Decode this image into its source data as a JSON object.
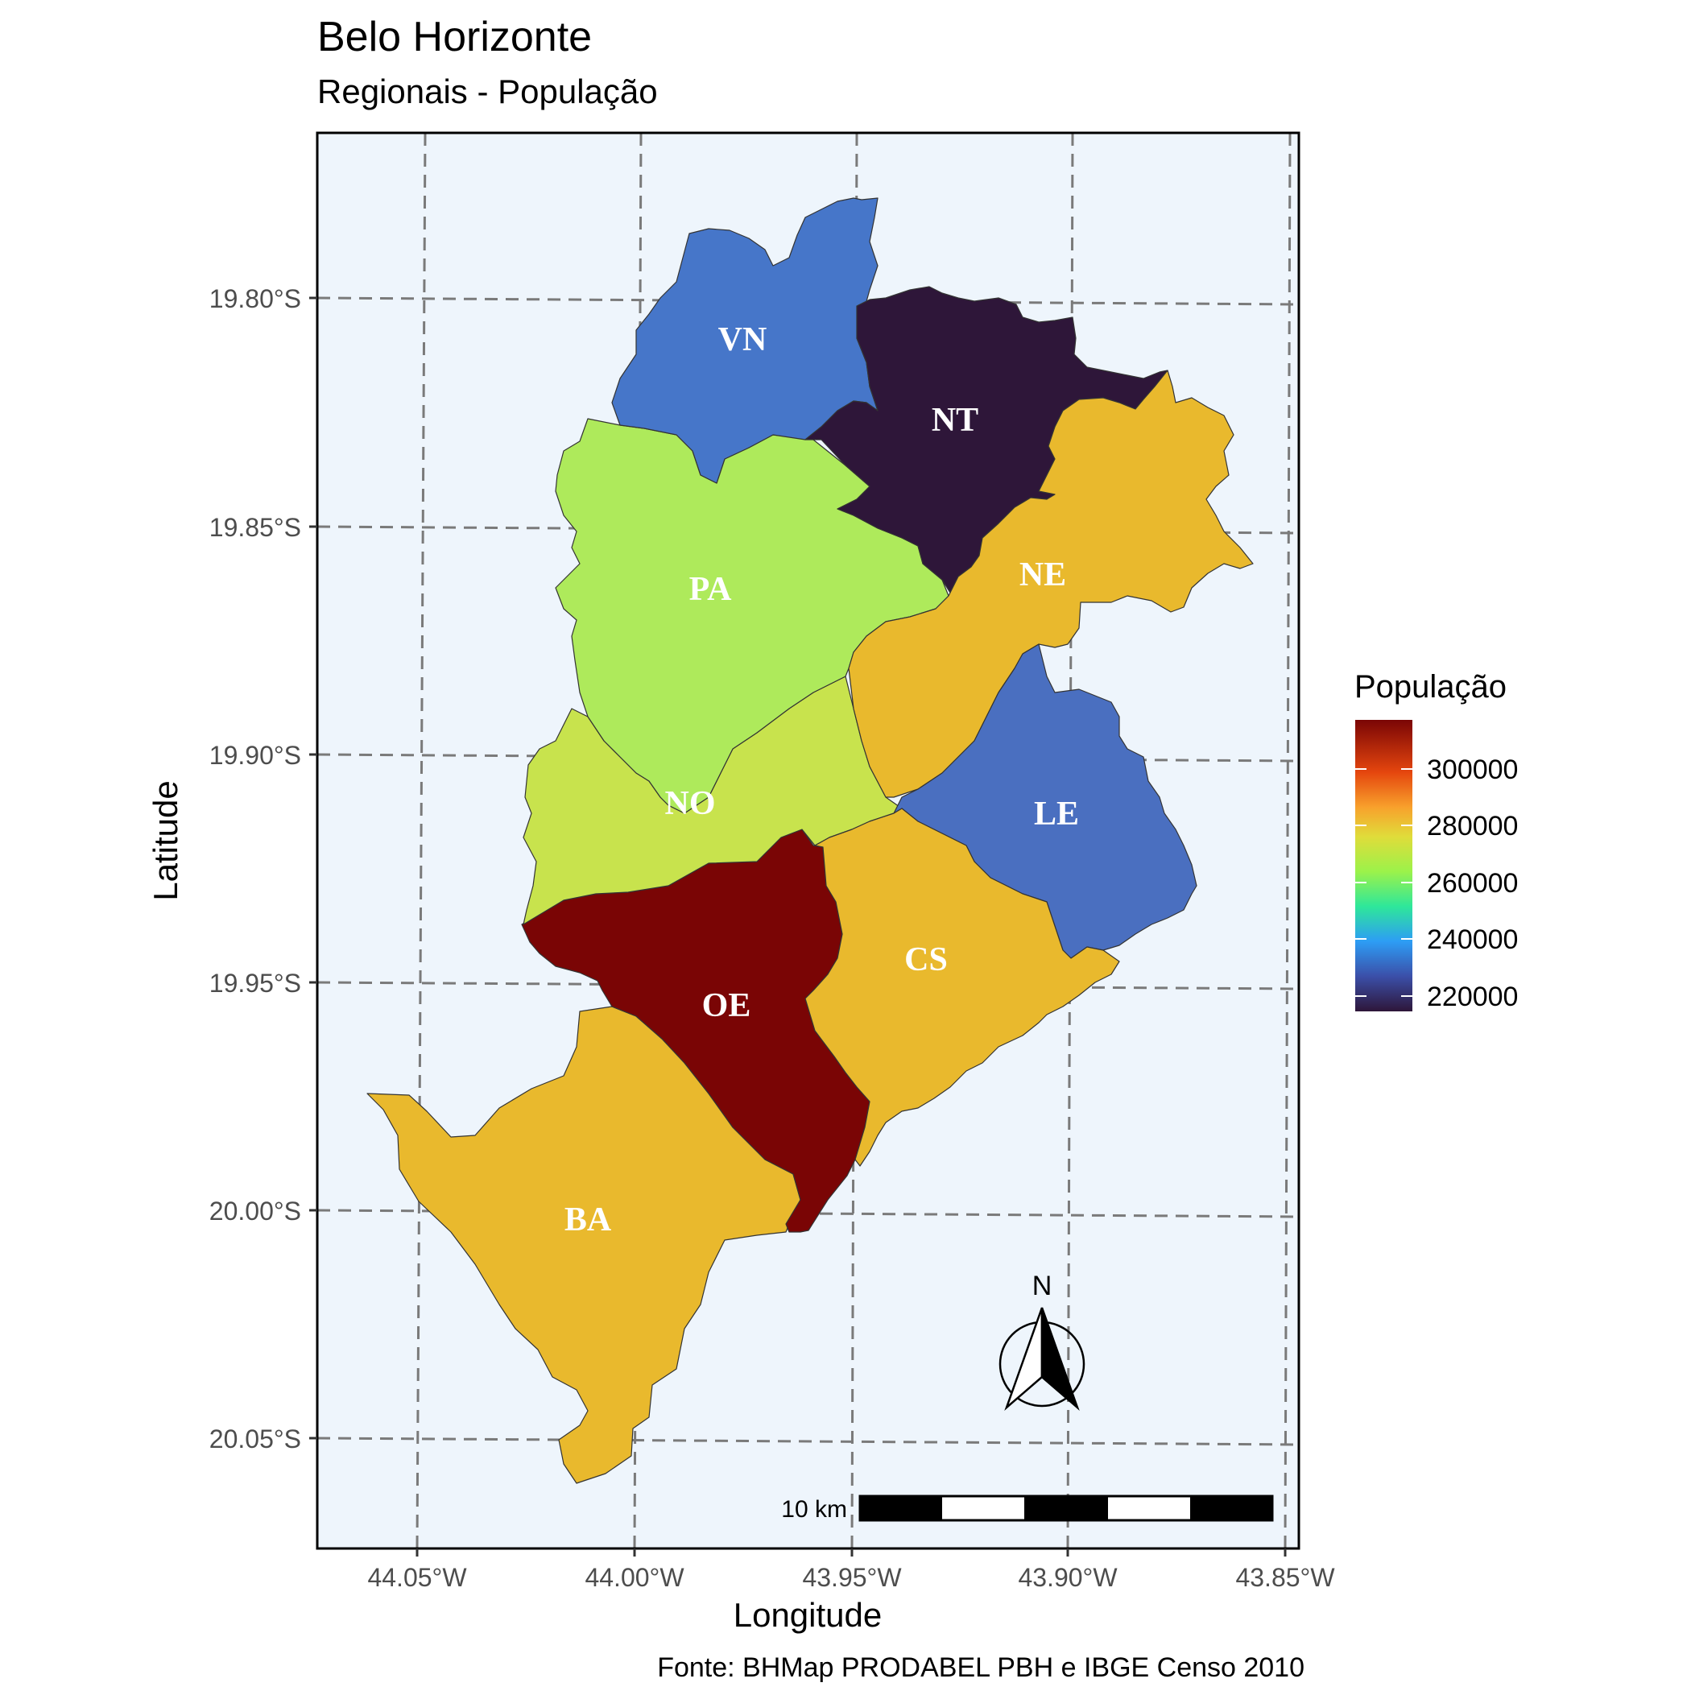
{
  "title": "Belo Horizonte",
  "subtitle": "Regionais - População",
  "caption": "Fonte: BHMap PRODABEL PBH e IBGE Censo 2010",
  "axes": {
    "xlabel": "Longitude",
    "ylabel": "Latitude",
    "x_ticks": [
      "44.05°W",
      "44.00°W",
      "43.95°W",
      "43.90°W",
      "43.85°W"
    ],
    "y_ticks": [
      "19.80°S",
      "19.85°S",
      "19.90°S",
      "19.95°S",
      "20.00°S",
      "20.05°S"
    ]
  },
  "legend": {
    "title": "População",
    "ticks": [
      "300000",
      "280000",
      "260000",
      "240000",
      "220000"
    ]
  },
  "regions": [
    {
      "code": "VN",
      "color": "#4676c9"
    },
    {
      "code": "NT",
      "color": "#2e1639"
    },
    {
      "code": "PA",
      "color": "#aeea5b"
    },
    {
      "code": "NE",
      "color": "#e9b92d"
    },
    {
      "code": "NO",
      "color": "#c8e34d"
    },
    {
      "code": "LE",
      "color": "#4a6fc0"
    },
    {
      "code": "OE",
      "color": "#7a0505"
    },
    {
      "code": "CS",
      "color": "#e9b92d"
    },
    {
      "code": "BA",
      "color": "#e9b92d"
    }
  ],
  "north_arrow": "N",
  "scale_bar": "10 km",
  "colors": {
    "panel_background": "#eef5fc",
    "grid": "#7a7a7a"
  }
}
